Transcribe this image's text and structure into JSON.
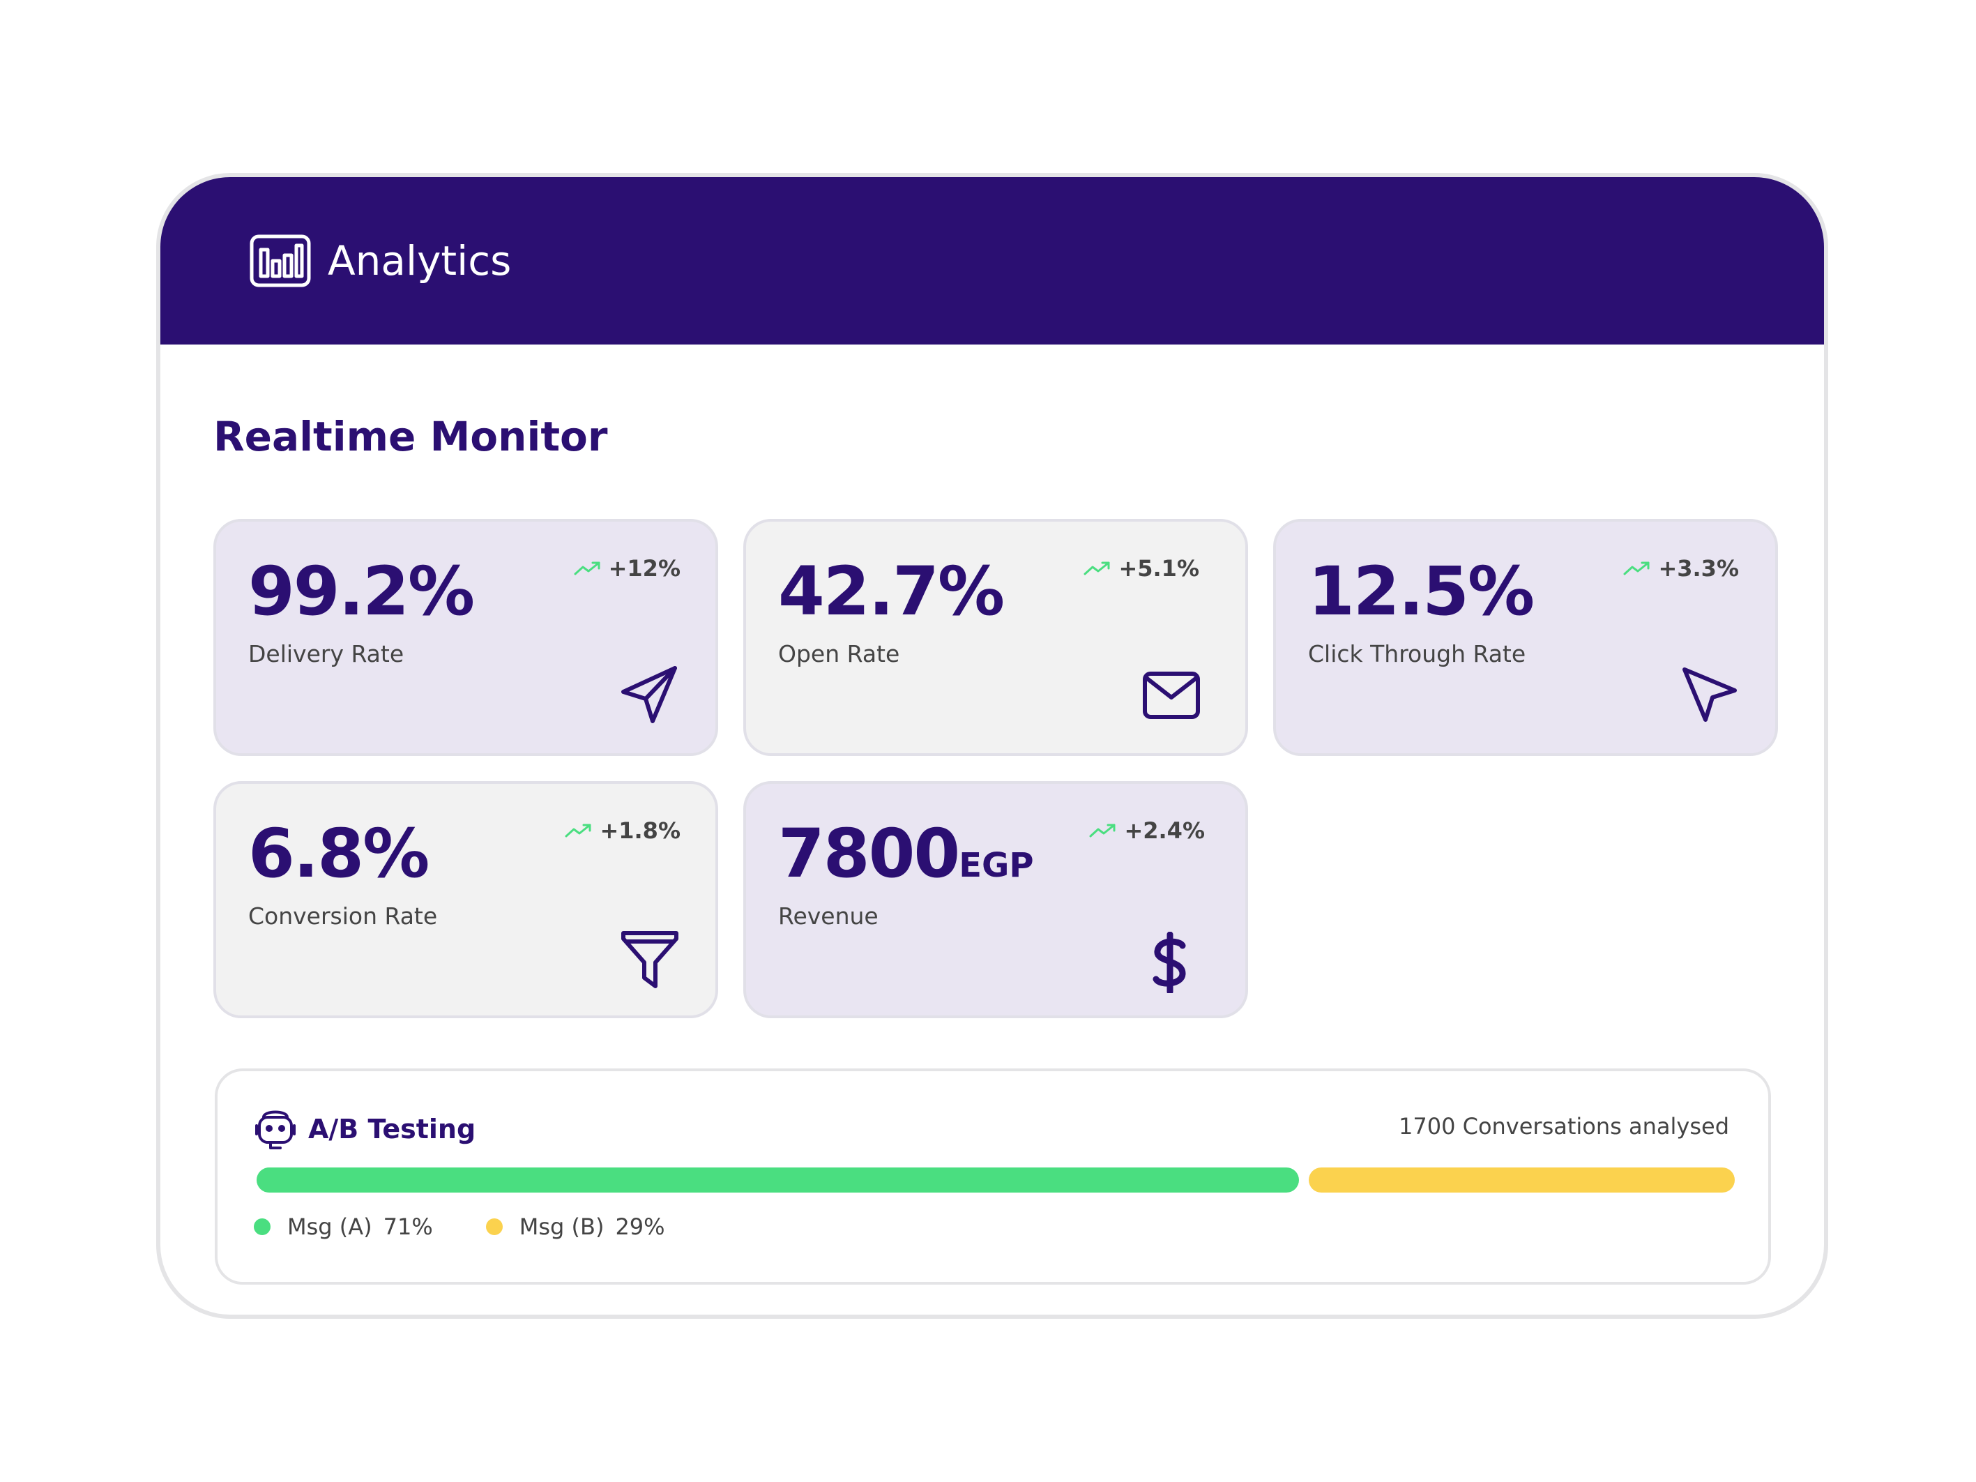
{
  "header": {
    "title": "Analytics",
    "icon": "bar-chart-icon"
  },
  "section": {
    "title": "Realtime Monitor"
  },
  "metrics": [
    {
      "value": "99.2%",
      "unit": "",
      "label": "Delivery Rate",
      "trend": "+12%",
      "icon": "send-icon",
      "style": "lavender"
    },
    {
      "value": "42.7%",
      "unit": "",
      "label": "Open Rate",
      "trend": "+5.1%",
      "icon": "mail-icon",
      "style": "gray"
    },
    {
      "value": "12.5%",
      "unit": "",
      "label": "Click Through Rate",
      "trend": "+3.3%",
      "icon": "cursor-icon",
      "style": "lavender"
    },
    {
      "value": "6.8%",
      "unit": "",
      "label": "Conversion Rate",
      "trend": "+1.8%",
      "icon": "funnel-icon",
      "style": "gray"
    },
    {
      "value": "7800",
      "unit": "EGP",
      "label": "Revenue",
      "trend": "+2.4%",
      "icon": "dollar-icon",
      "style": "lavender"
    }
  ],
  "ab_testing": {
    "title": "A/B Testing",
    "icon": "robot-icon",
    "summary": "1700 Conversations analysed",
    "variants": [
      {
        "name": "Msg (A)",
        "percent_label": "71%",
        "share": 0.71,
        "color": "#4ade80"
      },
      {
        "name": "Msg (B)",
        "percent_label": "29%",
        "share": 0.29,
        "color": "#fbd24e"
      }
    ]
  },
  "colors": {
    "brand": "#2b0f72",
    "trend_up": "#4ade80",
    "card_lavender": "#e9e5f2",
    "card_gray": "#f2f2f2"
  }
}
